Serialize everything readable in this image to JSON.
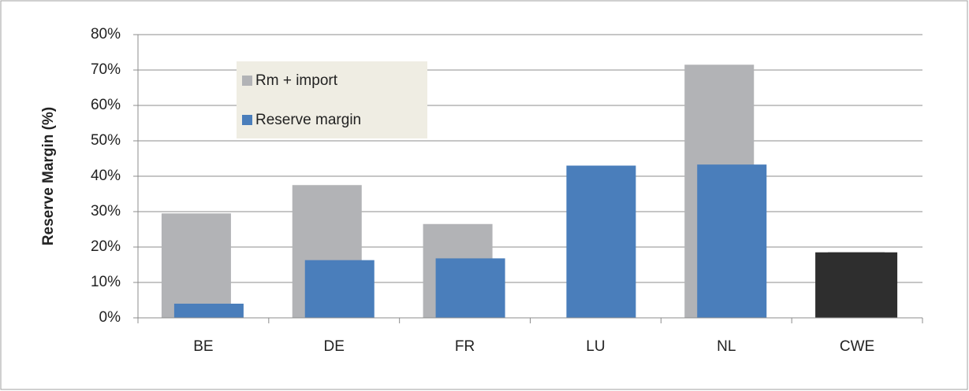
{
  "chart_data": {
    "type": "bar",
    "y_label": "Reserve Margin (%)",
    "categories": [
      "BE",
      "DE",
      "FR",
      "LU",
      "NL",
      "CWE"
    ],
    "series": [
      {
        "name": "Rm + import",
        "color": "#b2b3b6",
        "values": [
          29.5,
          37.5,
          26.5,
          null,
          71.5,
          18.5
        ],
        "colors": [
          null,
          null,
          null,
          null,
          null,
          "#2e2e2e"
        ]
      },
      {
        "name": "Reserve margin",
        "color": "#4a7ebb",
        "values": [
          4,
          16.3,
          16.8,
          43,
          43.3,
          18.5
        ],
        "colors": [
          null,
          null,
          null,
          null,
          null,
          "#2e2e2e"
        ]
      }
    ],
    "ylim": [
      0,
      80
    ],
    "yticks": [
      {
        "value": 0,
        "label": "0%"
      },
      {
        "value": 10,
        "label": "10%"
      },
      {
        "value": 20,
        "label": "20%"
      },
      {
        "value": 30,
        "label": "30%"
      },
      {
        "value": 40,
        "label": "40%"
      },
      {
        "value": 50,
        "label": "50%"
      },
      {
        "value": 60,
        "label": "60%"
      },
      {
        "value": 70,
        "label": "70%"
      },
      {
        "value": 80,
        "label": "80%"
      }
    ],
    "grid": true
  }
}
